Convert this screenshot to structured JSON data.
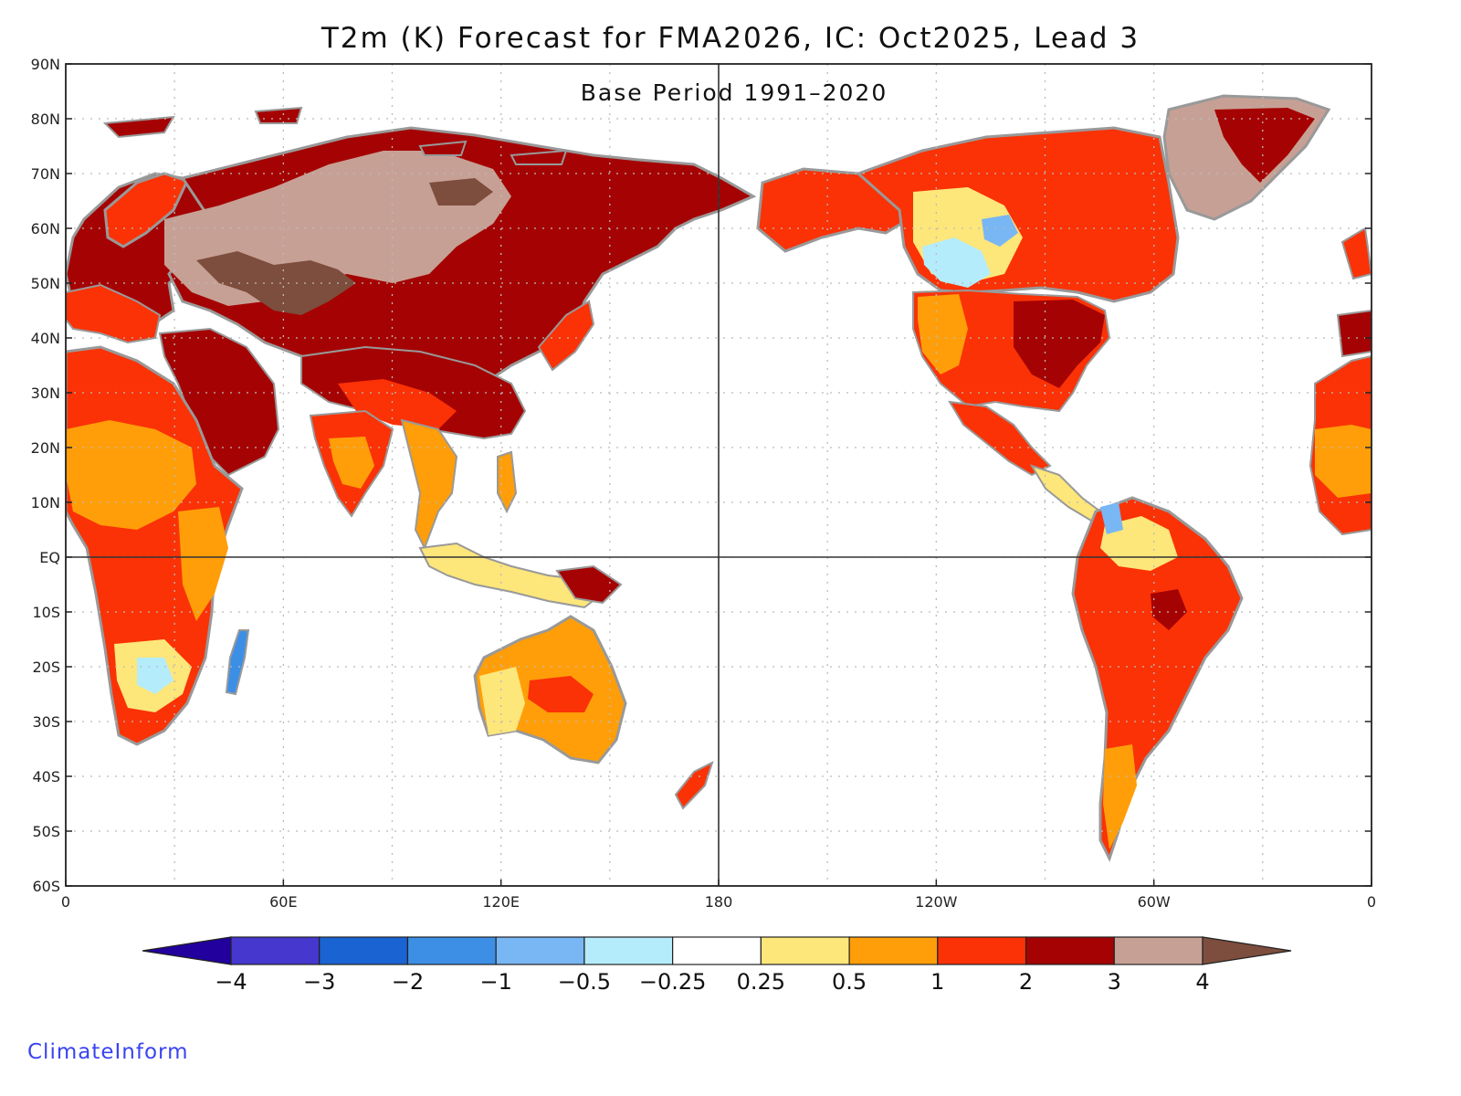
{
  "title": "T2m (K) Forecast for FMA2026, IC: Oct2025, Lead 3",
  "subtitle": "Base Period 1991–2020",
  "brand": "ClimateInform",
  "lat_labels": [
    "90N",
    "80N",
    "70N",
    "60N",
    "50N",
    "40N",
    "30N",
    "20N",
    "10N",
    "EQ",
    "10S",
    "20S",
    "30S",
    "40S",
    "50S",
    "60S"
  ],
  "lon_labels": [
    "0",
    "60E",
    "120E",
    "180",
    "120W",
    "60W",
    "0"
  ],
  "legend": {
    "labels": [
      "−4",
      "−3",
      "−2",
      "−1",
      "−0.5",
      "−0.25",
      "0.25",
      "0.5",
      "1",
      "2",
      "3",
      "4"
    ],
    "colors": [
      "#22009e",
      "#4637cf",
      "#1a63d2",
      "#3d8fe6",
      "#79b6f4",
      "#b5ecfb",
      "#ffffff",
      "#fde67a",
      "#ff9e08",
      "#fa3206",
      "#a50303",
      "#c7a095",
      "#7d4d3d"
    ]
  },
  "palette": {
    "anom_1_2": "#fa3206",
    "anom_2_3": "#a50303",
    "anom_3_4": "#c7a095",
    "anom_gt4": "#7d4d3d",
    "anom_0_5_1": "#ff9e08",
    "anom_0_25_0_5": "#fde67a",
    "anom_neg_0_5": "#b5ecfb",
    "anom_neg_1": "#79b6f4",
    "anom_neg_2": "#3d8fe6",
    "coast": "#999999"
  }
}
